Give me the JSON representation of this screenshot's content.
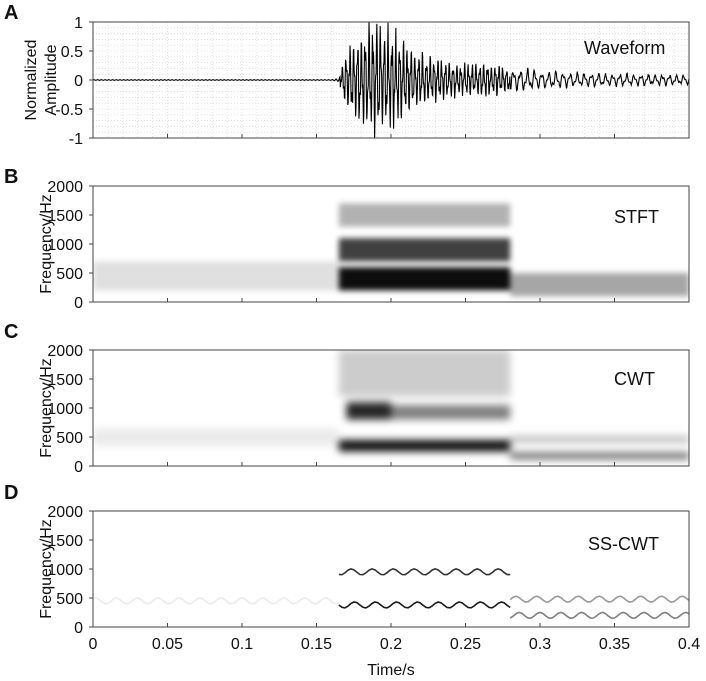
{
  "chart_data": [
    {
      "panel": "A",
      "type": "line",
      "title": "Waveform",
      "ylabel": "Normalized Amplitude",
      "ylabel_lines": [
        "Normalized",
        "Amplitude"
      ],
      "xlim": [
        0,
        0.4
      ],
      "ylim": [
        -1,
        1
      ],
      "yticks": [
        "-1",
        "-0.5",
        "0",
        "0.5",
        "1"
      ],
      "grid": true,
      "onset_time": 0.17,
      "burst_end_time": 0.28,
      "envelope": {
        "x": [
          0,
          0.16,
          0.165,
          0.17,
          0.18,
          0.19,
          0.2,
          0.21,
          0.22,
          0.23,
          0.24,
          0.25,
          0.26,
          0.28,
          0.3,
          0.32,
          0.35,
          0.4
        ],
        "y": [
          0.01,
          0.01,
          0.05,
          0.5,
          0.8,
          0.95,
          0.85,
          0.55,
          0.45,
          0.35,
          0.3,
          0.25,
          0.3,
          0.2,
          0.15,
          0.12,
          0.1,
          0.08
        ]
      }
    },
    {
      "panel": "B",
      "type": "heatmap",
      "title": "STFT",
      "ylabel": "Frequency/Hz",
      "xlim": [
        0,
        0.4
      ],
      "ylim": [
        0,
        2000
      ],
      "yticks": [
        "0",
        "500",
        "1000",
        "1500",
        "2000"
      ],
      "energy_regions": [
        {
          "t": [
            0.165,
            0.28
          ],
          "f": [
            200,
            600
          ],
          "intensity": 0.95
        },
        {
          "t": [
            0.165,
            0.28
          ],
          "f": [
            700,
            1100
          ],
          "intensity": 0.75
        },
        {
          "t": [
            0.165,
            0.28
          ],
          "f": [
            1300,
            1700
          ],
          "intensity": 0.3
        },
        {
          "t": [
            0.28,
            0.4
          ],
          "f": [
            100,
            500
          ],
          "intensity": 0.35
        },
        {
          "t": [
            0,
            0.165
          ],
          "f": [
            200,
            700
          ],
          "intensity": 0.12
        }
      ]
    },
    {
      "panel": "C",
      "type": "heatmap",
      "title": "CWT",
      "ylabel": "Frequency/Hz",
      "xlim": [
        0,
        0.4
      ],
      "ylim": [
        0,
        2000
      ],
      "yticks": [
        "0",
        "500",
        "1000",
        "1500",
        "2000"
      ],
      "energy_regions": [
        {
          "t": [
            0.165,
            0.28
          ],
          "f": [
            250,
            450
          ],
          "intensity": 0.95
        },
        {
          "t": [
            0.17,
            0.2
          ],
          "f": [
            800,
            1100
          ],
          "intensity": 0.85
        },
        {
          "t": [
            0.2,
            0.28
          ],
          "f": [
            800,
            1050
          ],
          "intensity": 0.5
        },
        {
          "t": [
            0.165,
            0.28
          ],
          "f": [
            1200,
            2000
          ],
          "intensity": 0.2
        },
        {
          "t": [
            0.28,
            0.4
          ],
          "f": [
            120,
            230
          ],
          "intensity": 0.6
        },
        {
          "t": [
            0.28,
            0.4
          ],
          "f": [
            400,
            520
          ],
          "intensity": 0.25
        },
        {
          "t": [
            0,
            0.165
          ],
          "f": [
            350,
            650
          ],
          "intensity": 0.08
        }
      ]
    },
    {
      "panel": "D",
      "type": "heatmap",
      "title": "SS-CWT",
      "ylabel": "Frequency/Hz",
      "xlabel": "Time/s",
      "xlim": [
        0,
        0.4
      ],
      "ylim": [
        0,
        2000
      ],
      "yticks": [
        "0",
        "500",
        "1000",
        "1500",
        "2000"
      ],
      "xticks": [
        "0",
        "0.05",
        "0.1",
        "0.15",
        "0.2",
        "0.25",
        "0.3",
        "0.35",
        "0.4"
      ],
      "ridges": [
        {
          "t": [
            0.165,
            0.28
          ],
          "f": 380,
          "intensity": 0.9
        },
        {
          "t": [
            0.165,
            0.28
          ],
          "f": 950,
          "intensity": 0.8
        },
        {
          "t": [
            0.28,
            0.4
          ],
          "f": 200,
          "intensity": 0.5
        },
        {
          "t": [
            0.28,
            0.4
          ],
          "f": 480,
          "intensity": 0.4
        },
        {
          "t": [
            0,
            0.165
          ],
          "f": 450,
          "intensity": 0.08
        }
      ]
    }
  ]
}
